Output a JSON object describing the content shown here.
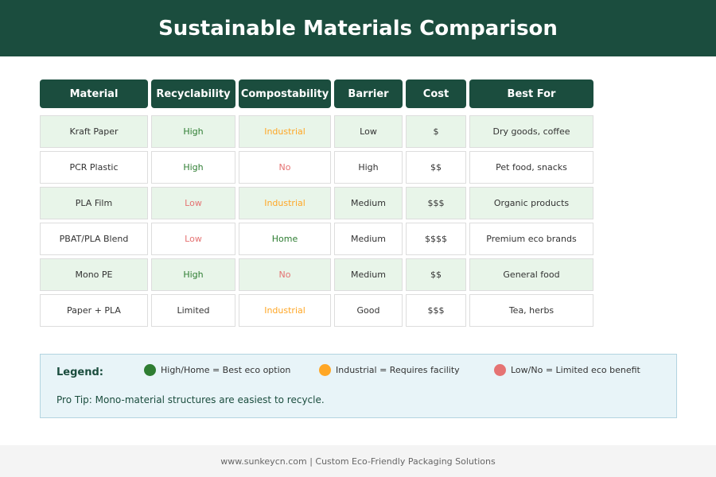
{
  "title": "Sustainable Materials Comparison",
  "colors": {
    "header": "#1b4d3e",
    "good": "#2e7d32",
    "medium": "#ffa726",
    "poor": "#e57373",
    "row_alt": "#e8f5e9"
  },
  "table": {
    "headers": [
      "Material",
      "Recyclability",
      "Compostability",
      "Barrier",
      "Cost",
      "Best For"
    ],
    "rows": [
      [
        "Kraft Paper",
        "High",
        "Industrial",
        "Low",
        "$",
        "Dry goods, coffee"
      ],
      [
        "PCR Plastic",
        "High",
        "No",
        "High",
        "$$",
        "Pet food, snacks"
      ],
      [
        "PLA Film",
        "Low",
        "Industrial",
        "Medium",
        "$$$",
        "Organic products"
      ],
      [
        "PBAT/PLA Blend",
        "Low",
        "Home",
        "Medium",
        "$$$$",
        "Premium eco brands"
      ],
      [
        "Mono PE",
        "High",
        "No",
        "Medium",
        "$$",
        "General food"
      ],
      [
        "Paper + PLA",
        "Limited",
        "Industrial",
        "Good",
        "$$$",
        "Tea, herbs"
      ]
    ]
  },
  "legend": {
    "title": "Legend:",
    "items": [
      {
        "label": "High/Home = Best eco option",
        "color": "#2e7d32"
      },
      {
        "label": "Industrial = Requires facility",
        "color": "#ffa726"
      },
      {
        "label": "Low/No = Limited eco benefit",
        "color": "#e57373"
      }
    ],
    "tip": "Pro Tip: Mono-material structures are easiest to recycle."
  },
  "footer": "www.sunkeycn.com | Custom Eco-Friendly Packaging Solutions"
}
